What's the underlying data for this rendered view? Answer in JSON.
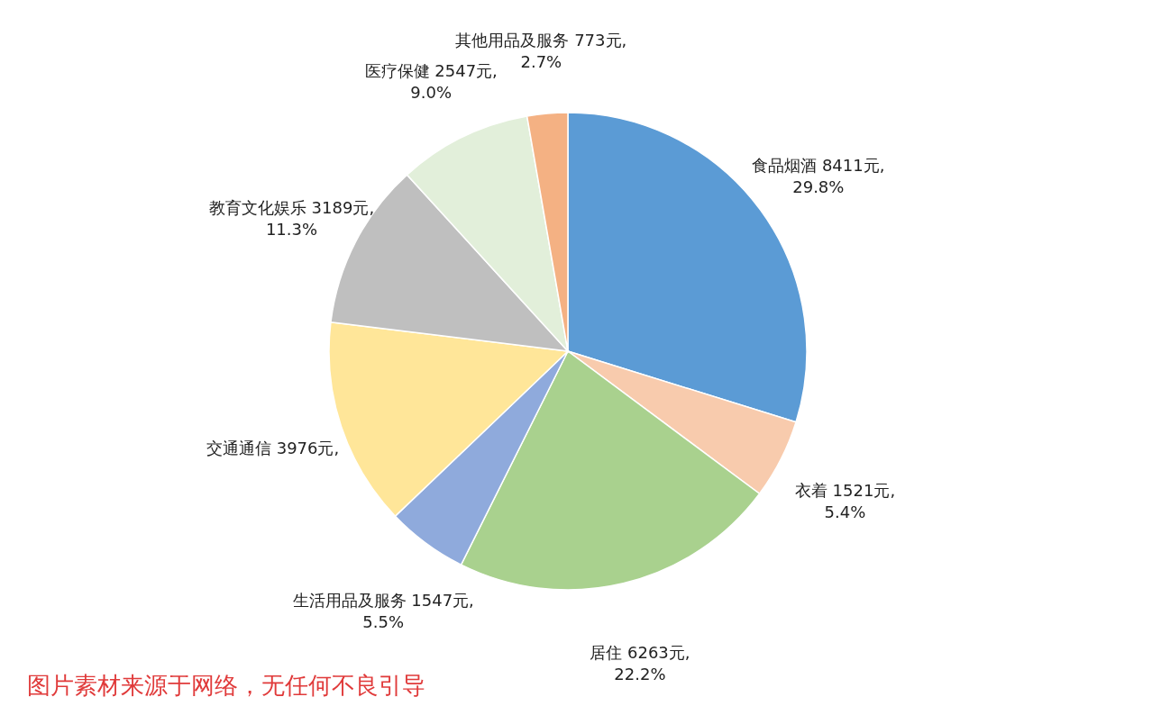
{
  "chart_data": {
    "type": "pie",
    "categories": [
      "食品烟酒",
      "衣着",
      "居住",
      "生活用品及服务",
      "交通通信",
      "教育文化娱乐",
      "医疗保健",
      "其他用品及服务"
    ],
    "values": [
      8411,
      1521,
      6263,
      1547,
      3976,
      3189,
      2547,
      773
    ],
    "colors": [
      "#5b9bd5",
      "#f8cbad",
      "#a9d18e",
      "#8faadc",
      "#ffe699",
      "#bfbfbf",
      "#e2efda",
      "#f4b183"
    ],
    "value_labels": [
      "8411元,\n29.8%",
      "1521元,\n5.4%",
      "6263元,\n22.2%",
      "1547元,\n5.5%",
      "3976元,",
      "3189元,\n11.3%",
      "2547元,\n9.0%",
      "773元,\n2.7%"
    ],
    "legend": false,
    "annotations": [
      "图片素材来源于网络，无任何不良引导"
    ]
  }
}
